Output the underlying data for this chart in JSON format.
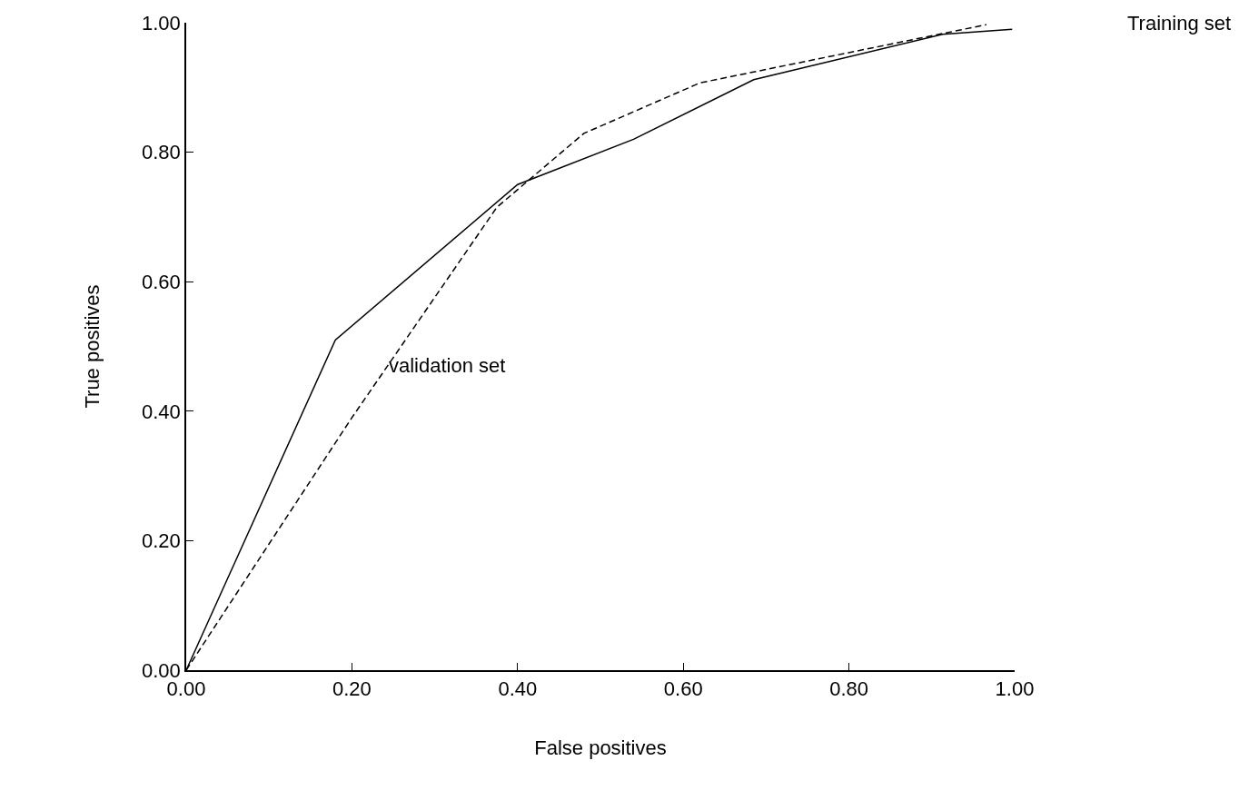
{
  "chart_data": {
    "type": "line",
    "xlabel": "False positives",
    "ylabel": "True positives",
    "series": [
      {
        "color": "#000000",
        "line_style": "solid",
        "x": [
          0,
          0.18,
          0.4,
          0.54,
          0.685,
          0.913,
          0.997
        ],
        "values": [
          0,
          0.51,
          0.75,
          0.82,
          0.912,
          0.982,
          0.99
        ]
      },
      {
        "color": "#000000",
        "line_style": "dashed",
        "x": [
          0,
          0.2,
          0.375,
          0.48,
          0.62,
          0.966
        ],
        "values": [
          0,
          0.39,
          0.715,
          0.829,
          0.907,
          0.997
        ]
      }
    ],
    "annotations": [
      "Training set",
      {
        "text": "validation set",
        "x": 0.24,
        "y": 0.47
      }
    ],
    "xlim": [
      0,
      1
    ],
    "ylim": [
      0,
      1
    ],
    "xticks": [
      {
        "value": 0,
        "label": "0.00"
      },
      {
        "value": 0.2,
        "label": "0.20"
      },
      {
        "value": 0.4,
        "label": "0.40"
      },
      {
        "value": 0.6,
        "label": "0.60"
      },
      {
        "value": 0.8,
        "label": "0.80"
      },
      {
        "value": 1,
        "label": "1.00"
      }
    ],
    "yticks": [
      {
        "value": 0,
        "label": "0.00"
      },
      {
        "value": 0.2,
        "label": "0.20"
      },
      {
        "value": 0.4,
        "label": "0.40"
      },
      {
        "value": 0.6,
        "label": "0.60"
      },
      {
        "value": 0.8,
        "label": "0.80"
      },
      {
        "value": 1,
        "label": "1.00"
      }
    ],
    "marker": "none"
  }
}
